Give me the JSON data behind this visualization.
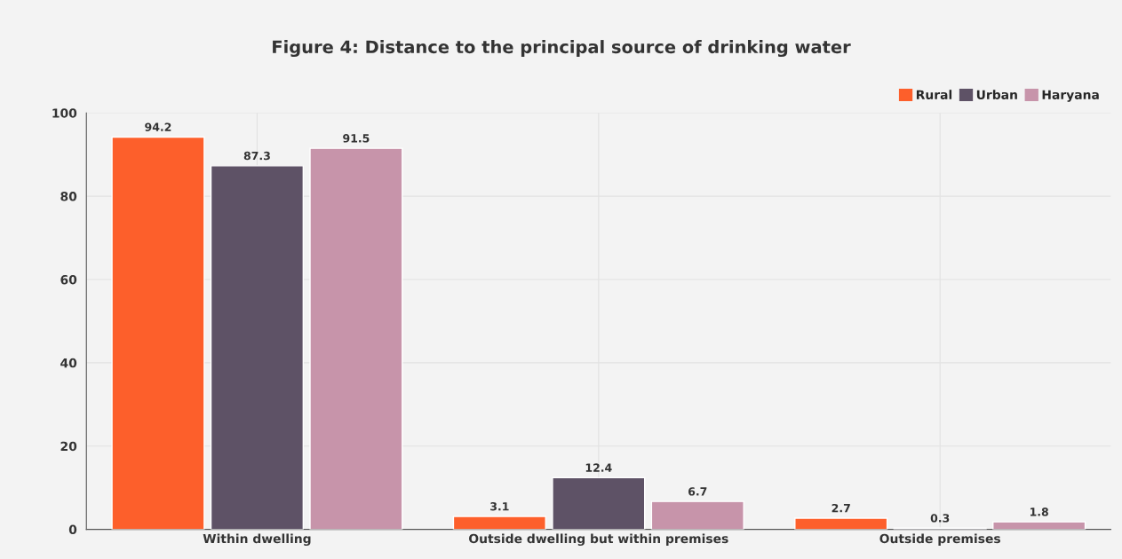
{
  "chart_data": {
    "type": "bar",
    "title": "Figure 4: Distance to the principal source of drinking water",
    "categories": [
      "Within dwelling",
      "Outside dwelling but within premises",
      "Outside premises"
    ],
    "series": [
      {
        "name": "Rural",
        "color": "#fd5f2b",
        "values": [
          94.2,
          3.1,
          2.7
        ]
      },
      {
        "name": "Urban",
        "color": "#5e5266",
        "values": [
          87.3,
          12.4,
          0.3
        ]
      },
      {
        "name": "Haryana",
        "color": "#c794aa",
        "values": [
          91.5,
          6.7,
          1.8
        ]
      }
    ],
    "ylim": [
      0,
      100
    ],
    "yticks": [
      0,
      20,
      40,
      60,
      80,
      100
    ],
    "grid": true,
    "legend": "top right",
    "data_labels": true
  }
}
